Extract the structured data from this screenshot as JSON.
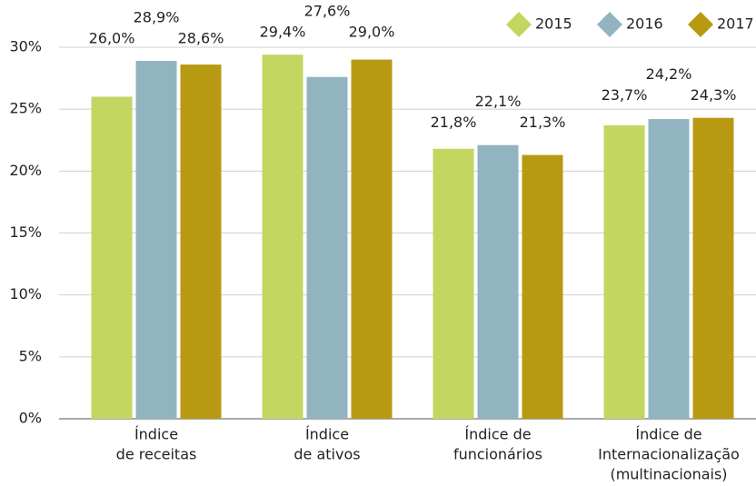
{
  "chart_data": {
    "type": "bar",
    "categories": [
      [
        "Índice",
        "de receitas"
      ],
      [
        "Índice",
        "de ativos"
      ],
      [
        "Índice de",
        "funcionários"
      ],
      [
        "Índice de",
        "Internacionalização",
        "(multinacionais)"
      ]
    ],
    "series": [
      {
        "name": "2015",
        "color": "#c3d660",
        "values": [
          26.0,
          29.4,
          21.8,
          23.7
        ],
        "value_labels": [
          "26,0%",
          "29,4%",
          "21,8%",
          "23,7%"
        ]
      },
      {
        "name": "2016",
        "color": "#92b4c0",
        "values": [
          28.9,
          27.6,
          22.1,
          24.2
        ],
        "value_labels": [
          "28,9%",
          "27,6%",
          "22,1%",
          "24,2%"
        ]
      },
      {
        "name": "2017",
        "color": "#b89a12",
        "values": [
          28.6,
          29.0,
          21.3,
          24.3
        ],
        "value_labels": [
          "28,6%",
          "29,0%",
          "21,3%",
          "24,3%"
        ]
      }
    ],
    "ylim": [
      0,
      30
    ],
    "yticks": [
      {
        "value": 0,
        "label": "0%"
      },
      {
        "value": 5,
        "label": "5%"
      },
      {
        "value": 10,
        "label": "10%"
      },
      {
        "value": 15,
        "label": "15%"
      },
      {
        "value": 20,
        "label": "20%"
      },
      {
        "value": 25,
        "label": "25%"
      },
      {
        "value": 30,
        "label": "30%"
      }
    ],
    "grid": true,
    "legend": "top-right"
  }
}
